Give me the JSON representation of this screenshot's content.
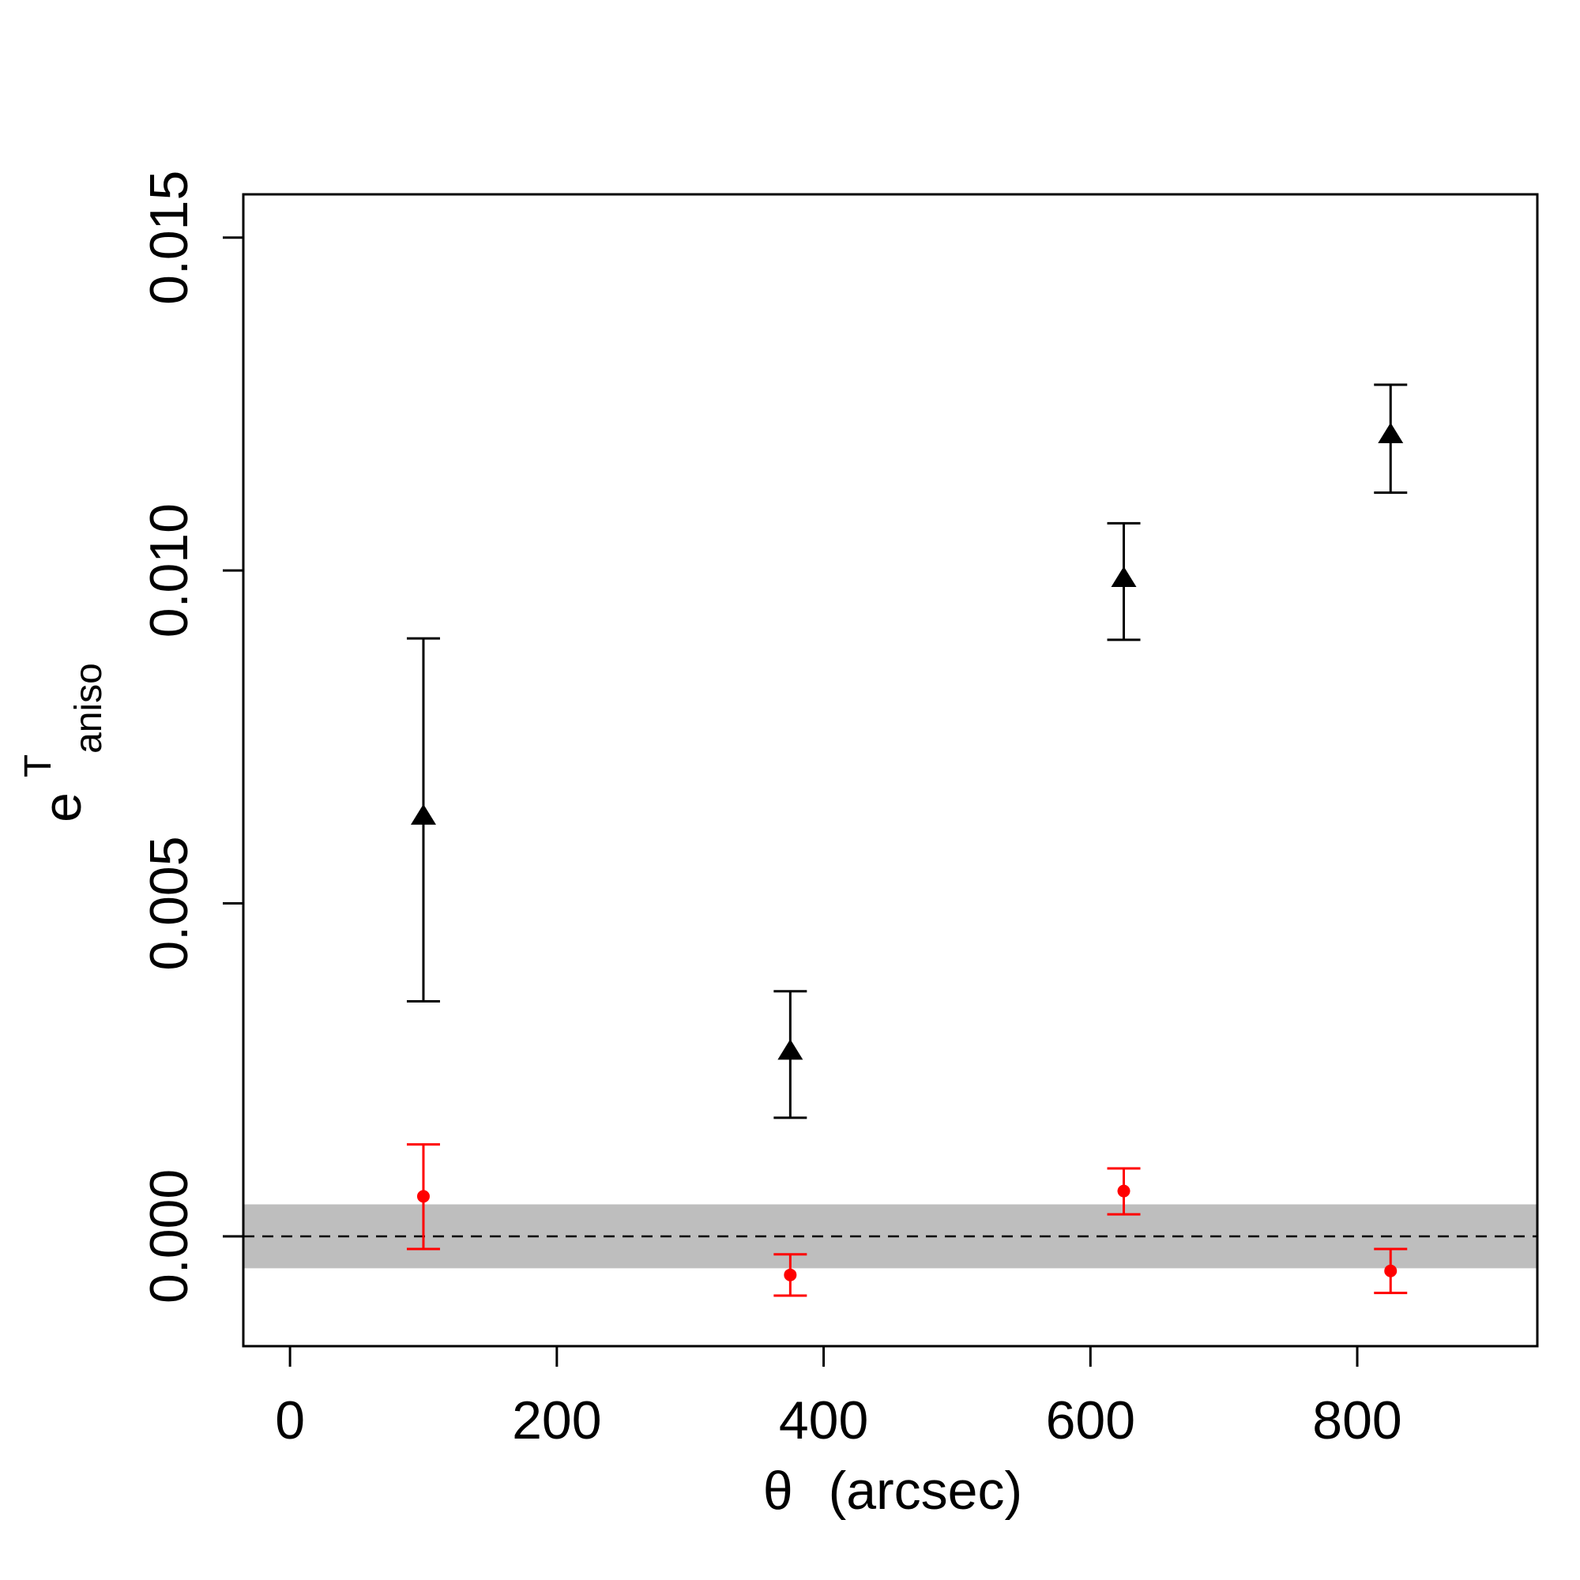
{
  "chart_data": {
    "type": "scatter",
    "title": "",
    "xlabel_symbol": "θ",
    "xlabel_unit": "(arcsec)",
    "ylabel_base": "e",
    "ylabel_sup": "T",
    "ylabel_sub": "aniso",
    "xlim": [
      -35,
      935
    ],
    "ylim": [
      -0.00165,
      0.01565
    ],
    "x_ticks": [
      0,
      200,
      400,
      600,
      800
    ],
    "x_tick_labels": [
      "0",
      "200",
      "400",
      "600",
      "800"
    ],
    "y_ticks": [
      0.0,
      0.005,
      0.01,
      0.015
    ],
    "y_tick_labels": [
      "0.000",
      "0.005",
      "0.010",
      "0.015"
    ],
    "grid": false,
    "reference_line": {
      "y": 0.0,
      "style": "dashed",
      "color": "#000000"
    },
    "band": {
      "ymin": -0.00048,
      "ymax": 0.00048,
      "color": "#bebebe"
    },
    "series": [
      {
        "marker": "triangle",
        "color": "#000000",
        "points": [
          {
            "x": 100,
            "y": 0.0063,
            "ylow": 0.00353,
            "yhigh": 0.00898
          },
          {
            "x": 375,
            "y": 0.00277,
            "ylow": 0.00178,
            "yhigh": 0.00368
          },
          {
            "x": 625,
            "y": 0.00987,
            "ylow": 0.00896,
            "yhigh": 0.01071
          },
          {
            "x": 825,
            "y": 0.01203,
            "ylow": 0.01117,
            "yhigh": 0.01279
          }
        ]
      },
      {
        "marker": "circle",
        "color": "#ff0000",
        "points": [
          {
            "x": 100,
            "y": 0.0006,
            "ylow": -0.00019,
            "yhigh": 0.00138
          },
          {
            "x": 375,
            "y": -0.00058,
            "ylow": -0.00089,
            "yhigh": -0.00027
          },
          {
            "x": 625,
            "y": 0.00068,
            "ylow": 0.00033,
            "yhigh": 0.00102
          },
          {
            "x": 825,
            "y": -0.00052,
            "ylow": -0.00085,
            "yhigh": -0.00019
          }
        ]
      }
    ]
  }
}
